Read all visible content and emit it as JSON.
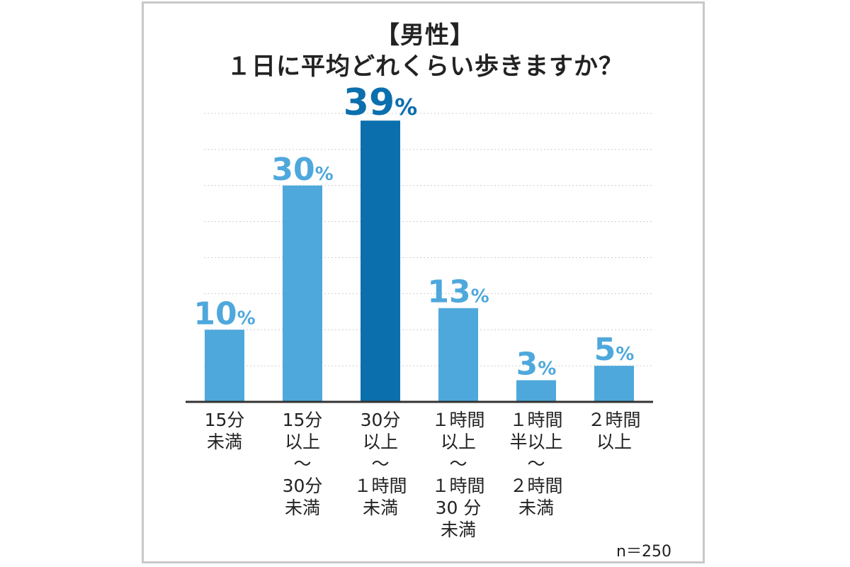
{
  "title_line1": "【男性】",
  "title_line2": "１日に平均どれくらい歩きますか？",
  "sample_note": "n＝250",
  "colors": {
    "bar": "#4ea8dc",
    "highlight": "#0b6fae",
    "label": "#4ea8dc",
    "highlight_label": "#0b6fae",
    "grid": "#cccccc",
    "axis": "#333333"
  },
  "chart_data": {
    "type": "bar",
    "title": "１日に平均どれくらい歩きますか？",
    "categories": [
      [
        "15分",
        "未満"
      ],
      [
        "15分",
        "以上",
        "〜",
        "30分",
        "未満"
      ],
      [
        "30分",
        "以上",
        "〜",
        "１時間",
        "未満"
      ],
      [
        "１時間",
        "以上",
        "〜",
        "１時間",
        "30 分",
        "未満"
      ],
      [
        "１時間",
        "半以上",
        "〜",
        "２時間",
        "未満"
      ],
      [
        "２時間",
        "以上"
      ]
    ],
    "values": [
      10,
      30,
      39,
      13,
      3,
      5
    ],
    "value_suffix": "%",
    "highlight_index": 2,
    "ylim": [
      0,
      40
    ],
    "grid": true
  }
}
